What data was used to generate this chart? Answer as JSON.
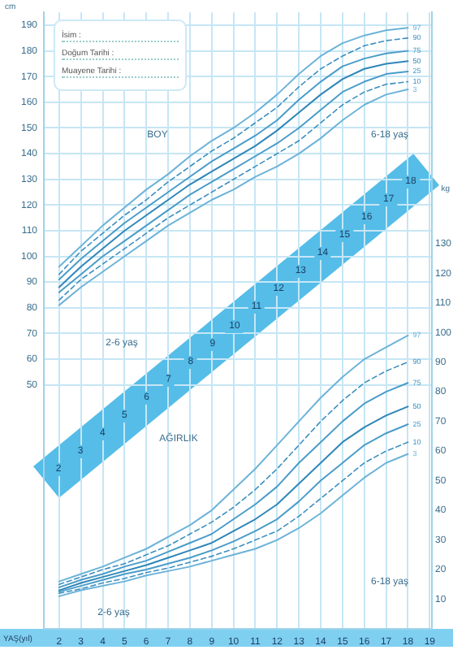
{
  "chart_data": {
    "type": "line",
    "xlabel": "YAŞ(yıl)",
    "ylabel": "cm",
    "y2label": "kg",
    "x": [
      2,
      3,
      4,
      5,
      6,
      7,
      8,
      9,
      10,
      11,
      12,
      13,
      14,
      15,
      16,
      17,
      18
    ],
    "xlim": [
      1.3,
      19.1
    ],
    "xticks": [
      2,
      3,
      4,
      5,
      6,
      7,
      8,
      9,
      10,
      11,
      12,
      13,
      14,
      15,
      16,
      17,
      18,
      19
    ],
    "ylim": [
      -45,
      195
    ],
    "yticks": [
      50,
      60,
      70,
      80,
      90,
      100,
      110,
      120,
      130,
      140,
      150,
      160,
      170,
      180,
      190
    ],
    "y2lim": [
      0,
      208
    ],
    "y2ticks": [
      10,
      20,
      30,
      40,
      50,
      60,
      70,
      80,
      90,
      100,
      110,
      120,
      130
    ],
    "grid": true,
    "marker": "none",
    "series": [
      {
        "name": "97",
        "color": "#6db3d8",
        "line_style": "solid",
        "values": [
          96,
          104,
          112,
          119,
          126,
          132,
          139,
          145,
          150,
          156,
          163,
          171,
          178,
          183,
          186,
          188,
          189
        ]
      },
      {
        "name": "90",
        "color": "#3d8fbf",
        "line_style": "dashed",
        "values": [
          93,
          102,
          109,
          116,
          122,
          129,
          135,
          141,
          146,
          152,
          158,
          166,
          173,
          178,
          182,
          184,
          185
        ]
      },
      {
        "name": "75",
        "color": "#4a9cc9",
        "line_style": "solid",
        "values": [
          91,
          99,
          106,
          113,
          119,
          125,
          131,
          137,
          142,
          147,
          153,
          161,
          168,
          174,
          177,
          179,
          180
        ]
      },
      {
        "name": "50",
        "color": "#2f86b8",
        "line_style": "solid",
        "values": [
          88,
          96,
          103,
          110,
          116,
          122,
          128,
          133,
          138,
          143,
          149,
          156,
          163,
          169,
          173,
          175,
          176
        ]
      },
      {
        "name": "25",
        "color": "#4a9cc9",
        "line_style": "solid",
        "values": [
          86,
          93,
          100,
          106,
          112,
          118,
          124,
          129,
          134,
          139,
          144,
          150,
          157,
          164,
          168,
          171,
          172
        ]
      },
      {
        "name": "10",
        "color": "#3d8fbf",
        "line_style": "dashed",
        "values": [
          83,
          91,
          97,
          103,
          109,
          115,
          120,
          125,
          130,
          135,
          140,
          145,
          152,
          159,
          164,
          167,
          168
        ]
      },
      {
        "name": "3",
        "color": "#6db3d8",
        "line_style": "solid",
        "values": [
          81,
          88,
          94,
          100,
          106,
          112,
          117,
          122,
          126,
          131,
          135,
          140,
          146,
          153,
          159,
          163,
          165
        ]
      },
      {
        "name": "97",
        "color": "#6db3d8",
        "line_style": "solid",
        "axis": "y2",
        "values": [
          16,
          18.5,
          21,
          24,
          27,
          31,
          35,
          40,
          47,
          54,
          62,
          70,
          78,
          85,
          91,
          95,
          99
        ]
      },
      {
        "name": "90",
        "color": "#3d8fbf",
        "line_style": "dashed",
        "axis": "y2",
        "values": [
          15,
          17.5,
          20,
          22,
          25,
          28,
          32,
          36,
          41,
          47,
          54,
          62,
          70,
          77,
          83,
          87,
          90
        ]
      },
      {
        "name": "75",
        "color": "#4a9cc9",
        "line_style": "solid",
        "axis": "y2",
        "values": [
          14,
          16.5,
          18.5,
          21,
          23,
          26,
          29,
          32,
          37,
          42,
          48,
          56,
          63,
          70,
          76,
          80,
          83
        ]
      },
      {
        "name": "50",
        "color": "#2f86b8",
        "line_style": "solid",
        "axis": "y2",
        "values": [
          13,
          15.5,
          17.5,
          19.5,
          21.5,
          24,
          26.5,
          29,
          33,
          37,
          42,
          49,
          56,
          63,
          68,
          72,
          75
        ]
      },
      {
        "name": "25",
        "color": "#4a9cc9",
        "line_style": "solid",
        "axis": "y2",
        "values": [
          12.5,
          14.5,
          16.5,
          18.5,
          20,
          22,
          24,
          26.5,
          29.5,
          33,
          37,
          43,
          50,
          56,
          62,
          66,
          69
        ]
      },
      {
        "name": "10",
        "color": "#3d8fbf",
        "line_style": "dashed",
        "axis": "y2",
        "values": [
          12,
          13.5,
          15.5,
          17,
          19,
          20.5,
          22.5,
          24.5,
          27,
          30,
          33,
          38,
          44,
          50,
          56,
          60,
          63
        ]
      },
      {
        "name": "3",
        "color": "#6db3d8",
        "line_style": "solid",
        "axis": "y2",
        "values": [
          11,
          13,
          14.5,
          16,
          18,
          19.5,
          21,
          23,
          25,
          27,
          30,
          34,
          39,
          45,
          51,
          56,
          59
        ]
      }
    ],
    "annotations": [
      "BOY",
      "6-18 yaş",
      "2-6 yaş",
      "AĞIRLIK",
      "2-6 yaş",
      "6-18 yaş",
      "İsim :",
      "Doğum Tarihi :",
      "Muayene Tarihi :",
      "2",
      "3",
      "4",
      "5",
      "6",
      "7",
      "8",
      "9",
      "10",
      "11",
      "12",
      "13",
      "14",
      "15",
      "16",
      "17",
      "18"
    ]
  }
}
